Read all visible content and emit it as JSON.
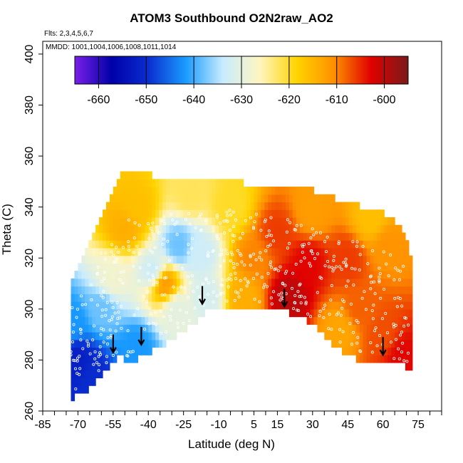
{
  "title": "ATOM3 Southbound O2N2raw_AO2",
  "flights_label": "Flts: 2,3,4,5,6,7",
  "mmdd_label": "MMDD: 1001,1004,1006,1008,1011,1014",
  "chart_data": {
    "type": "heatmap",
    "title": "ATOM3 Southbound O2N2raw_AO2",
    "xlabel": "Latitude (deg N)",
    "ylabel": "Theta (C)",
    "xlim": [
      -85,
      85
    ],
    "ylim": [
      260,
      405
    ],
    "x_tick_labels": [
      -85,
      -70,
      -55,
      -40,
      -25,
      -10,
      5,
      15,
      30,
      45,
      60,
      75
    ],
    "x_minor_ticks": [
      -85,
      -80,
      -75,
      -70,
      -65,
      -60,
      -55,
      -50,
      -45,
      -40,
      -35,
      -30,
      -25,
      -20,
      -15,
      -10,
      -5,
      0,
      5,
      10,
      15,
      20,
      25,
      30,
      35,
      40,
      45,
      50,
      55,
      60,
      65,
      70,
      75,
      80,
      85
    ],
    "y_tick_labels": [
      260,
      280,
      300,
      320,
      340,
      360,
      380,
      400
    ],
    "colorbar": {
      "ticks": [
        -660,
        -650,
        -640,
        -630,
        -620,
        -610,
        -600
      ],
      "range": [
        -665,
        -595
      ],
      "colors": [
        "#7a1fe8",
        "#0000a8",
        "#0a2fd0",
        "#1a9cff",
        "#c8ecff",
        "#fff5c0",
        "#ffd400",
        "#ff9000",
        "#e00000",
        "#7a1a1a"
      ]
    },
    "floor_profile": {
      "lat": [
        -73,
        -68,
        -62,
        -58,
        -55,
        -52,
        -47,
        -43,
        -38,
        -32,
        -27,
        -22,
        -18,
        -14,
        -9,
        -2,
        5,
        12,
        18,
        25,
        30,
        35,
        40,
        47,
        55,
        62,
        68,
        72
      ],
      "theta": [
        265,
        267,
        272,
        276,
        279,
        282,
        278,
        282,
        284,
        287,
        290,
        293,
        297,
        300,
        301,
        301,
        300,
        300,
        299,
        297,
        294,
        289,
        285,
        281,
        279,
        279,
        278,
        276
      ]
    },
    "ceiling_profile": {
      "lat": [
        -75,
        -70,
        -65,
        -60,
        -55,
        -52,
        -45,
        -38,
        -30,
        -20,
        -10,
        0,
        10,
        20,
        30,
        40,
        50,
        60,
        66,
        70,
        72
      ],
      "theta": [
        305,
        316,
        325,
        336,
        346,
        352,
        352,
        351,
        351,
        351,
        350,
        348,
        347,
        346,
        345,
        342,
        339,
        337,
        332,
        326,
        320
      ]
    },
    "anomaly_centers": [
      {
        "lat": -70,
        "theta": 280,
        "value": -652
      },
      {
        "lat": -63,
        "theta": 273,
        "value": -650
      },
      {
        "lat": -72,
        "theta": 295,
        "value": -642
      },
      {
        "lat": -60,
        "theta": 300,
        "value": -638
      },
      {
        "lat": -55,
        "theta": 312,
        "value": -628
      },
      {
        "lat": -50,
        "theta": 332,
        "value": -614
      },
      {
        "lat": -45,
        "theta": 340,
        "value": -616
      },
      {
        "lat": -38,
        "theta": 315,
        "value": -633
      },
      {
        "lat": -27,
        "theta": 325,
        "value": -638
      },
      {
        "lat": -18,
        "theta": 322,
        "value": -633
      },
      {
        "lat": -15,
        "theta": 305,
        "value": -632
      },
      {
        "lat": -28,
        "theta": 300,
        "value": -630
      },
      {
        "lat": -45,
        "theta": 285,
        "value": -642
      },
      {
        "lat": -33,
        "theta": 310,
        "value": -612
      },
      {
        "lat": -22,
        "theta": 345,
        "value": -622
      },
      {
        "lat": -5,
        "theta": 340,
        "value": -620
      },
      {
        "lat": 5,
        "theta": 320,
        "value": -610
      },
      {
        "lat": 20,
        "theta": 305,
        "value": -600
      },
      {
        "lat": 28,
        "theta": 318,
        "value": -603
      },
      {
        "lat": 15,
        "theta": 330,
        "value": -606
      },
      {
        "lat": 30,
        "theta": 338,
        "value": -612
      },
      {
        "lat": 45,
        "theta": 320,
        "value": -606
      },
      {
        "lat": 50,
        "theta": 300,
        "value": -608
      },
      {
        "lat": 42,
        "theta": 292,
        "value": -613
      },
      {
        "lat": 60,
        "theta": 290,
        "value": -607
      },
      {
        "lat": 68,
        "theta": 282,
        "value": -603
      },
      {
        "lat": 62,
        "theta": 325,
        "value": -611
      },
      {
        "lat": 55,
        "theta": 335,
        "value": -616
      },
      {
        "lat": 0,
        "theta": 305,
        "value": -614
      }
    ],
    "arrows": [
      {
        "lat": -55,
        "theta": 286
      },
      {
        "lat": -43,
        "theta": 289
      },
      {
        "lat": -17,
        "theta": 305
      },
      {
        "lat": 18,
        "theta": 304
      },
      {
        "lat": 60,
        "theta": 285
      }
    ]
  }
}
